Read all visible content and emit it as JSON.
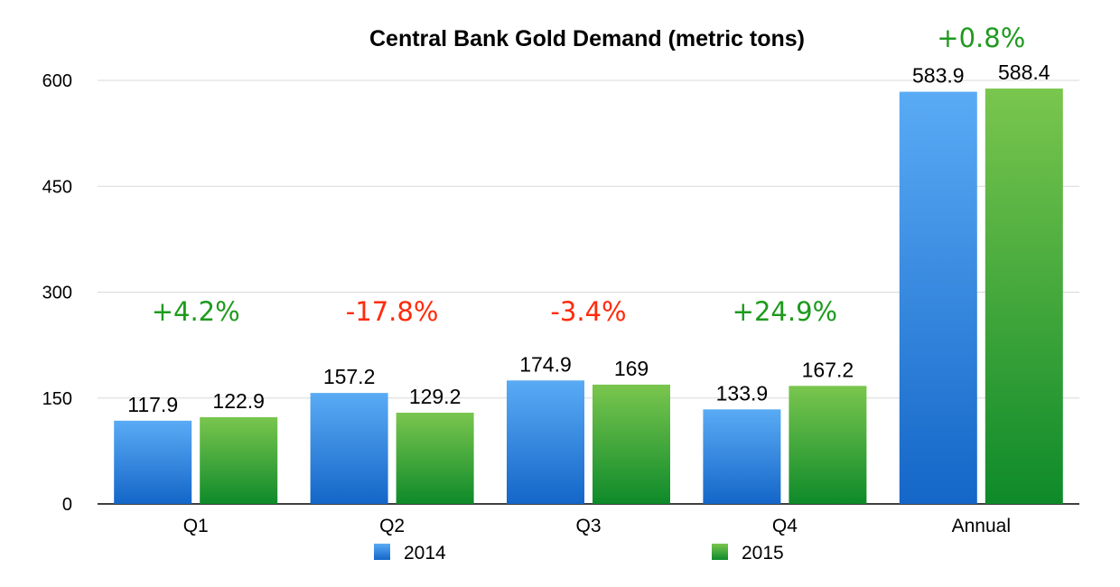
{
  "chart_data": {
    "type": "bar",
    "title": "Central Bank Gold Demand (metric tons)",
    "categories": [
      "Q1",
      "Q2",
      "Q3",
      "Q4",
      "Annual"
    ],
    "series": [
      {
        "name": "2014",
        "values": [
          117.9,
          157.2,
          174.9,
          133.9,
          583.9
        ],
        "value_labels": [
          "117.9",
          "157.2",
          "174.9",
          "133.9",
          "583.9"
        ],
        "color_top": "#5aabf5",
        "color_bottom": "#1466c8"
      },
      {
        "name": "2015",
        "values": [
          122.9,
          129.2,
          169,
          167.2,
          588.4
        ],
        "value_labels": [
          "122.9",
          "129.2",
          "169",
          "167.2",
          "588.4"
        ],
        "color_top": "#7ac64e",
        "color_bottom": "#0e8a2a"
      }
    ],
    "annotations": [
      "+4.2%",
      "-17.8%",
      "-3.4%",
      "+24.9%",
      "+0.8%"
    ],
    "annotation_colors": [
      "#1e9a1e",
      "#ff2a0a",
      "#ff2a0a",
      "#1e9a1e",
      "#1e9a1e"
    ],
    "yticks": [
      0,
      150,
      300,
      450,
      600
    ],
    "ylim": [
      0,
      650
    ],
    "grid": true,
    "legend": "bottom",
    "xlabel": "",
    "ylabel": ""
  }
}
